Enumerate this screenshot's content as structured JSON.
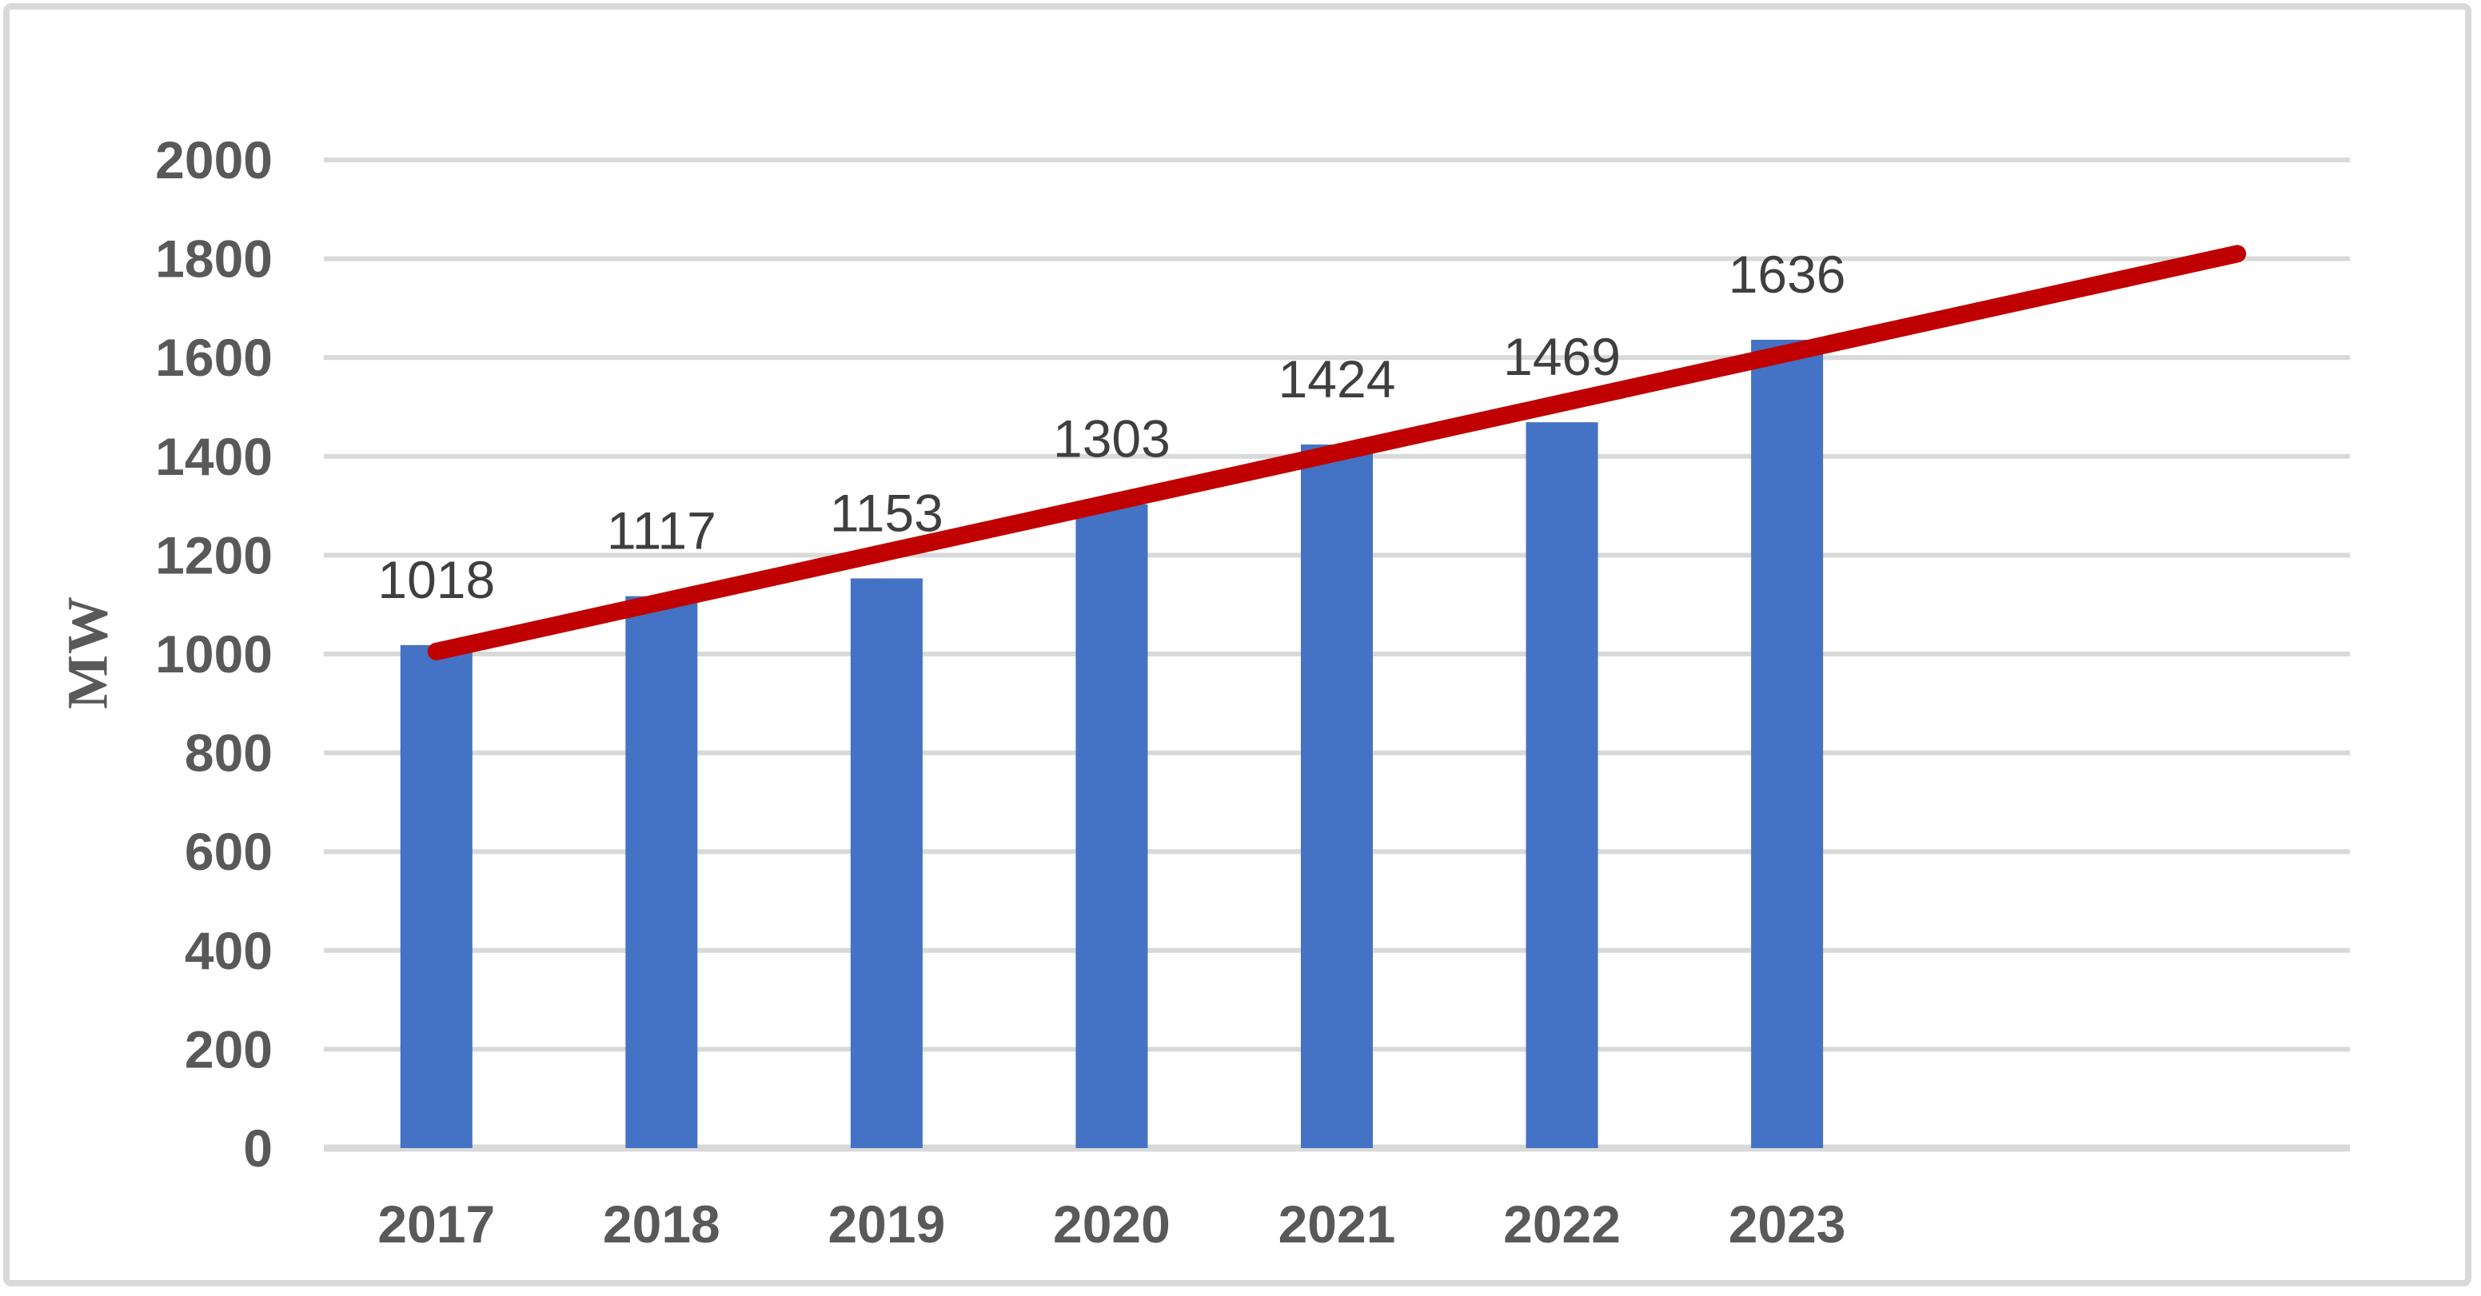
{
  "chart_data": {
    "type": "bar",
    "title": "",
    "xlabel": "",
    "ylabel": "MW",
    "categories": [
      "2017",
      "2018",
      "2019",
      "2020",
      "2021",
      "2022",
      "2023"
    ],
    "series": [
      {
        "name": "MW",
        "type": "bar",
        "color": "#4472C4",
        "values": [
          1018,
          1117,
          1153,
          1303,
          1424,
          1469,
          1636
        ]
      }
    ],
    "data_labels": [
      "1018",
      "1117",
      "1153",
      "1303",
      "1424",
      "1469",
      "1636"
    ],
    "yticks": [
      2000,
      1800,
      1600,
      1400,
      1200,
      1000,
      800,
      600,
      400,
      200,
      0
    ],
    "ylim": [
      0,
      2000
    ],
    "ytick_interval": 200,
    "grid": "horizontal",
    "legend_position": "none",
    "trendline": {
      "type": "linear",
      "color": "#C00000",
      "start_category_index": 0,
      "start_value": 1005,
      "end_category_index": 8,
      "end_value": 1810,
      "forecast_periods_beyond_last_category": 2
    },
    "total_axis_slots": 9
  },
  "style_colors": {
    "bar": "#4472C4",
    "trendline": "#C00000",
    "gridline": "#D9D9D9",
    "axis_line": "#D9D9D9",
    "frame_border": "#D9D9D9",
    "axis_text": "#595959",
    "data_label_text": "#3F3F3F",
    "background": "#FFFFFF"
  }
}
